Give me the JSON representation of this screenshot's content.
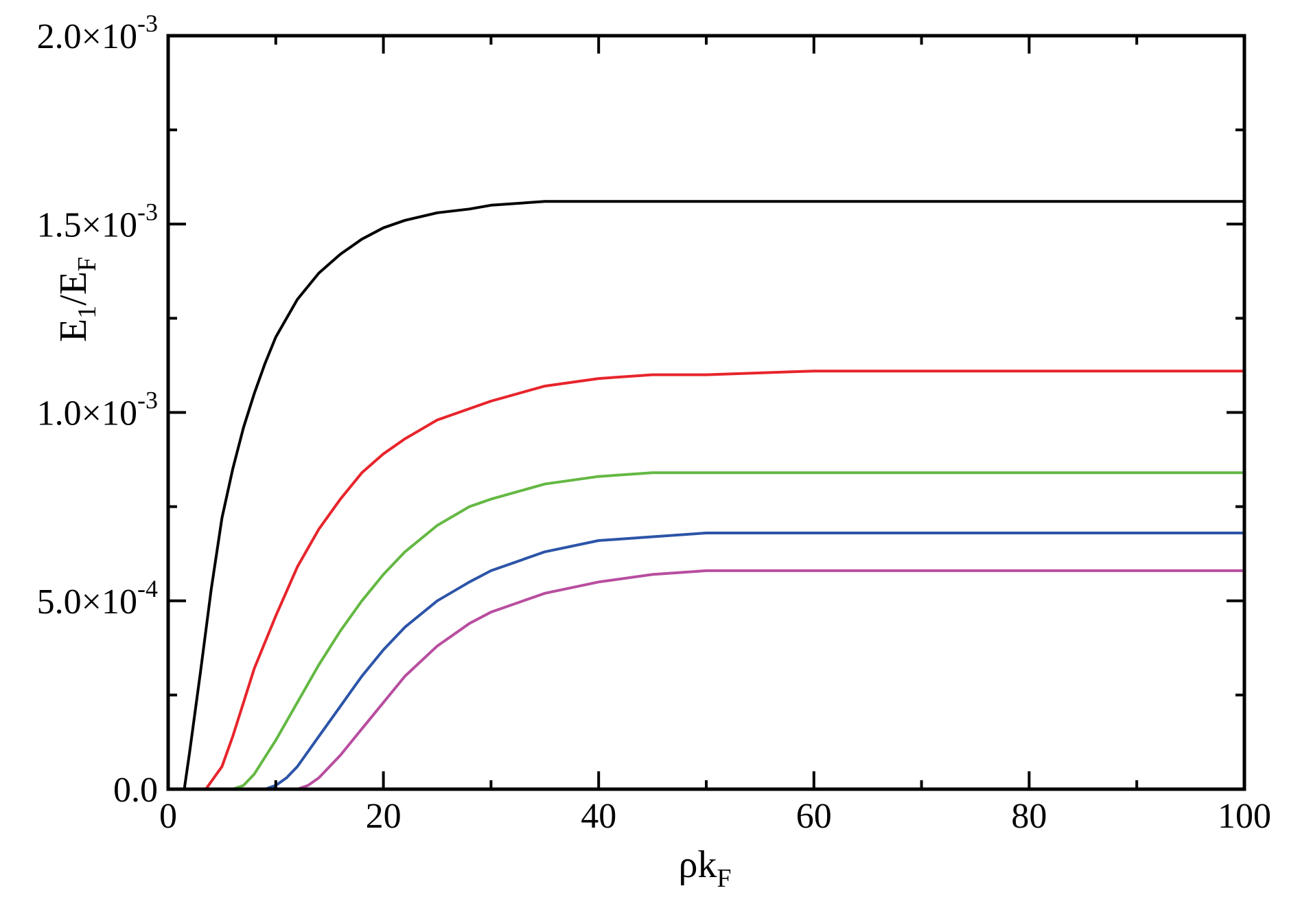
{
  "chart_data": {
    "type": "line",
    "title": "",
    "xlabel": {
      "main": "ρk",
      "sub": "F"
    },
    "ylabel": {
      "e": "E",
      "sub1": "1",
      "mid": "/E",
      "sub2": "F"
    },
    "xlim": [
      0,
      100
    ],
    "ylim": [
      0,
      0.002
    ],
    "x_ticks": [
      0,
      20,
      40,
      60,
      80,
      100
    ],
    "x_tick_labels": [
      "0",
      "20",
      "40",
      "60",
      "80",
      "100"
    ],
    "x_minor_ticks": [
      10,
      30,
      50,
      70,
      90
    ],
    "y_ticks": [
      0,
      0.0005,
      0.001,
      0.0015,
      0.002
    ],
    "y_tick_labels": [
      {
        "mantissa": "0.0",
        "exp": ""
      },
      {
        "mantissa": "5.0×10",
        "exp": "-4"
      },
      {
        "mantissa": "1.0×10",
        "exp": "-3"
      },
      {
        "mantissa": "1.5×10",
        "exp": "-3"
      },
      {
        "mantissa": "2.0×10",
        "exp": "-3"
      }
    ],
    "y_minor_ticks": [
      0.00025,
      0.00075,
      0.00125,
      0.00175
    ],
    "grid": false,
    "series": [
      {
        "color": "#000000",
        "x": [
          1.5,
          2,
          3,
          4,
          5,
          6,
          7,
          8,
          9,
          10,
          12,
          14,
          16,
          18,
          20,
          22,
          25,
          28,
          30,
          35,
          40,
          45,
          50,
          60,
          70,
          80,
          90,
          100
        ],
        "values": [
          0,
          0.0001,
          0.00031,
          0.00053,
          0.00072,
          0.00085,
          0.00096,
          0.00105,
          0.00113,
          0.0012,
          0.0013,
          0.00137,
          0.00142,
          0.00146,
          0.00149,
          0.00151,
          0.00153,
          0.00154,
          0.00155,
          0.00156,
          0.00156,
          0.00156,
          0.00156,
          0.00156,
          0.00156,
          0.00156,
          0.00156,
          0.00156
        ]
      },
      {
        "color": "#e8242b",
        "x": [
          3.5,
          4,
          5,
          6,
          7,
          8,
          9,
          10,
          12,
          14,
          16,
          18,
          20,
          22,
          25,
          28,
          30,
          35,
          40,
          45,
          50,
          60,
          70,
          80,
          90,
          100
        ],
        "values": [
          0,
          2e-05,
          6e-05,
          0.00014,
          0.00023,
          0.00032,
          0.00039,
          0.00046,
          0.00059,
          0.00069,
          0.00077,
          0.00084,
          0.00089,
          0.00093,
          0.00098,
          0.00101,
          0.00103,
          0.00107,
          0.00109,
          0.0011,
          0.0011,
          0.00111,
          0.00111,
          0.00111,
          0.00111,
          0.00111
        ]
      },
      {
        "color": "#64b843",
        "x": [
          6,
          7,
          8,
          10,
          12,
          14,
          16,
          18,
          20,
          22,
          25,
          28,
          30,
          35,
          40,
          45,
          50,
          60,
          70,
          80,
          90,
          100
        ],
        "values": [
          0,
          1e-05,
          4e-05,
          0.00013,
          0.00023,
          0.00033,
          0.00042,
          0.0005,
          0.00057,
          0.00063,
          0.0007,
          0.00075,
          0.00077,
          0.00081,
          0.00083,
          0.00084,
          0.00084,
          0.00084,
          0.00084,
          0.00084,
          0.00084,
          0.00084
        ]
      },
      {
        "color": "#2c54a8",
        "x": [
          9,
          10,
          11,
          12,
          14,
          16,
          18,
          20,
          22,
          25,
          28,
          30,
          35,
          40,
          45,
          50,
          60,
          70,
          80,
          90,
          100
        ],
        "values": [
          0,
          1e-05,
          3e-05,
          6e-05,
          0.00014,
          0.00022,
          0.0003,
          0.00037,
          0.00043,
          0.0005,
          0.00055,
          0.00058,
          0.00063,
          0.00066,
          0.00067,
          0.00068,
          0.00068,
          0.00068,
          0.00068,
          0.00068,
          0.00068
        ]
      },
      {
        "color": "#b84e9f",
        "x": [
          12,
          13,
          14,
          16,
          18,
          20,
          22,
          25,
          28,
          30,
          35,
          40,
          45,
          50,
          55,
          60,
          70,
          80,
          90,
          100
        ],
        "values": [
          0,
          1e-05,
          3e-05,
          9e-05,
          0.00016,
          0.00023,
          0.0003,
          0.00038,
          0.00044,
          0.00047,
          0.00052,
          0.00055,
          0.00057,
          0.00058,
          0.00058,
          0.00058,
          0.00058,
          0.00058,
          0.00058,
          0.00058
        ]
      }
    ]
  }
}
